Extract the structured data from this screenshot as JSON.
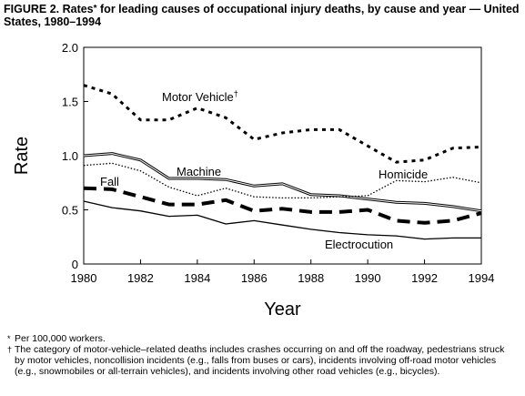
{
  "title": {
    "lead": "FIGURE 2. Rates",
    "mark": "*",
    "rest": " for leading causes of occupational injury deaths, by cause and year — United States, 1980–1994"
  },
  "footnotes": [
    {
      "mark": "*",
      "text": "Per 100,000 workers."
    },
    {
      "mark": "†",
      "text": "The category of motor-vehicle–related deaths includes crashes occurring on and off the roadway, pedestrians struck by motor vehicles, noncollision incidents (e.g., falls from buses or cars), incidents involving off-road motor vehicles (e.g., snowmobiles or all-terrain vehicles), and incidents involving other road vehicles (e.g., bicycles)."
    }
  ],
  "chart_data": {
    "type": "line",
    "xlabel": "Year",
    "ylabel": "Rate",
    "xlim": [
      1980,
      1994
    ],
    "ylim": [
      0,
      2.0
    ],
    "xticks": [
      "1980",
      "1982",
      "1984",
      "1986",
      "1988",
      "1990",
      "1992",
      "1994"
    ],
    "yticks": [
      "0",
      "0.5",
      "1.0",
      "1.5",
      "2.0"
    ],
    "grid": false,
    "legend": "inline labels",
    "x": [
      1980,
      1981,
      1982,
      1983,
      1984,
      1985,
      1986,
      1987,
      1988,
      1989,
      1990,
      1991,
      1992,
      1993,
      1994
    ],
    "series": [
      {
        "name": "Motor Vehicle†",
        "style": "dotted-heavy",
        "values": [
          1.65,
          1.57,
          1.33,
          1.33,
          1.44,
          1.35,
          1.15,
          1.21,
          1.24,
          1.24,
          1.09,
          0.94,
          0.96,
          1.07,
          1.08
        ]
      },
      {
        "name": "Machine",
        "style": "solid-double",
        "values": [
          1.0,
          1.02,
          0.96,
          0.79,
          0.79,
          0.78,
          0.72,
          0.74,
          0.64,
          0.63,
          0.6,
          0.57,
          0.56,
          0.53,
          0.49
        ]
      },
      {
        "name": "Homicide",
        "style": "dotted-light",
        "values": [
          0.91,
          0.93,
          0.86,
          0.71,
          0.63,
          0.7,
          0.62,
          0.61,
          0.61,
          0.62,
          0.63,
          0.77,
          0.76,
          0.8,
          0.75
        ]
      },
      {
        "name": "Fall",
        "style": "dashed-heavy",
        "values": [
          0.7,
          0.69,
          0.62,
          0.55,
          0.55,
          0.59,
          0.49,
          0.51,
          0.48,
          0.48,
          0.5,
          0.4,
          0.38,
          0.4,
          0.47
        ]
      },
      {
        "name": "Electrocution",
        "style": "solid",
        "values": [
          0.58,
          0.52,
          0.49,
          0.44,
          0.45,
          0.37,
          0.4,
          0.36,
          0.32,
          0.29,
          0.27,
          0.26,
          0.23,
          0.24,
          0.24
        ]
      }
    ]
  }
}
